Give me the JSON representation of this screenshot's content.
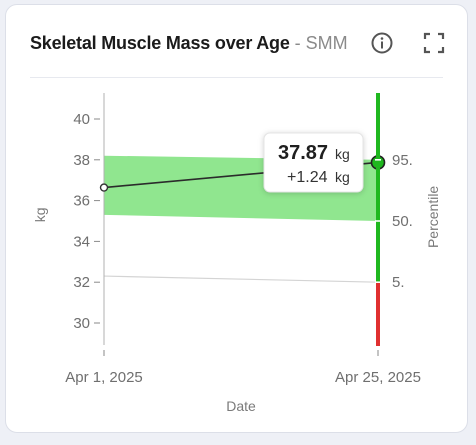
{
  "card": {
    "title": "Skeletal Muscle Mass over Age",
    "separator": " - ",
    "subtitle": "SMM",
    "info_icon": "info-icon",
    "fullscreen_icon": "fullscreen-icon"
  },
  "chart_data": {
    "type": "line",
    "title": "Skeletal Muscle Mass over Age",
    "xlabel": "Date",
    "ylabel": "kg",
    "y2label": "Percentile",
    "ylim": [
      29,
      41.5
    ],
    "yticks": [
      30,
      32,
      34,
      36,
      38,
      40
    ],
    "x_ticks": [
      "Apr 1, 2025",
      "Apr 25, 2025"
    ],
    "series": [
      {
        "x": [
          "Apr 1, 2025",
          "Apr 25, 2025"
        ],
        "values": [
          36.64,
          37.87
        ]
      }
    ],
    "band_5th": {
      "x": [
        "Apr 1, 2025",
        "Apr 25, 2025"
      ],
      "values": [
        32.3,
        32.0
      ]
    },
    "band_50th": {
      "x": [
        "Apr 1, 2025",
        "Apr 25, 2025"
      ],
      "values": [
        35.3,
        35.0
      ]
    },
    "band_95th": {
      "x": [
        "Apr 1, 2025",
        "Apr 25, 2025"
      ],
      "values": [
        38.2,
        38.0
      ]
    },
    "percentile_labels": [
      "95.",
      "50.",
      "5."
    ],
    "percentile_bar": [
      {
        "from": 38.0,
        "to": 42.0,
        "color": "#1fb81f"
      },
      {
        "from": 35.0,
        "to": 38.0,
        "color": "#1fb81f"
      },
      {
        "from": 32.0,
        "to": 35.0,
        "color": "#1fb81f"
      },
      {
        "from": 28.0,
        "to": 32.0,
        "color": "#e03030"
      }
    ],
    "tooltip": {
      "value": "37.87",
      "unit": "kg",
      "delta": "+1.24",
      "delta_unit": "kg"
    },
    "colors": {
      "band": "#90e68f",
      "line": "#2b2b2b",
      "green": "#1fb81f",
      "red": "#e03030"
    },
    "grid": false
  }
}
